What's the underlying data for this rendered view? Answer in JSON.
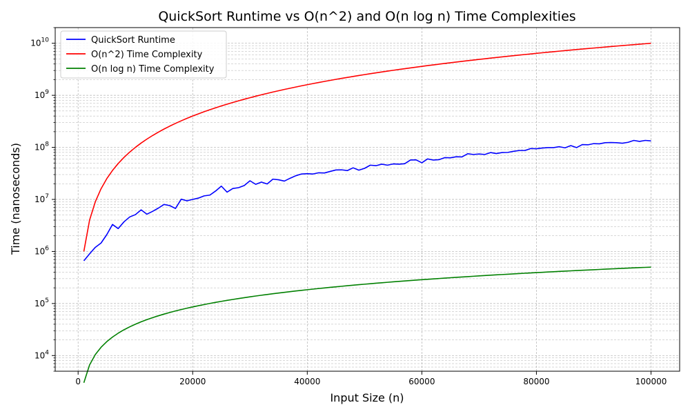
{
  "chart_data": {
    "type": "line",
    "title": "QuickSort Runtime vs O(n^2) and O(n log n) Time Complexities",
    "xlabel": "Input Size (n)",
    "ylabel": "Time (nanoseconds)",
    "xlim": [
      -4000,
      105000
    ],
    "ylim": [
      5000,
      20000000000
    ],
    "yscale": "log",
    "grid": true,
    "legend_position": "top-left",
    "x_ticks": [
      {
        "value": 0,
        "label": "0"
      },
      {
        "value": 20000,
        "label": "20000"
      },
      {
        "value": 40000,
        "label": "40000"
      },
      {
        "value": 60000,
        "label": "60000"
      },
      {
        "value": 80000,
        "label": "80000"
      },
      {
        "value": 100000,
        "label": "100000"
      }
    ],
    "y_ticks": [
      {
        "value": 10000,
        "base": "10",
        "exp": "4"
      },
      {
        "value": 100000,
        "base": "10",
        "exp": "5"
      },
      {
        "value": 1000000,
        "base": "10",
        "exp": "6"
      },
      {
        "value": 10000000,
        "base": "10",
        "exp": "7"
      },
      {
        "value": 100000000,
        "base": "10",
        "exp": "8"
      },
      {
        "value": 1000000000,
        "base": "10",
        "exp": "9"
      },
      {
        "value": 10000000000,
        "base": "10",
        "exp": "10"
      }
    ],
    "series": [
      {
        "name": "QuickSort Runtime",
        "color": "#0000ff",
        "points": [
          [
            1000,
            660000
          ],
          [
            2000,
            900000
          ],
          [
            3000,
            1200000
          ],
          [
            4000,
            1450000
          ],
          [
            5000,
            2100000
          ],
          [
            6000,
            3300000
          ],
          [
            7000,
            2750000
          ],
          [
            8000,
            3700000
          ],
          [
            9000,
            4600000
          ],
          [
            10000,
            5100000
          ],
          [
            11000,
            6300000
          ],
          [
            12000,
            5200000
          ],
          [
            13000,
            5900000
          ],
          [
            14000,
            6800000
          ],
          [
            15000,
            8000000
          ],
          [
            16000,
            7600000
          ],
          [
            17000,
            6700000
          ],
          [
            18000,
            10100000
          ],
          [
            19000,
            9400000
          ],
          [
            20000,
            10000000
          ],
          [
            21000,
            10600000
          ],
          [
            22000,
            11700000
          ],
          [
            23000,
            12100000
          ],
          [
            24000,
            14500000
          ],
          [
            25000,
            18000000
          ],
          [
            26000,
            13800000
          ],
          [
            27000,
            16200000
          ],
          [
            28000,
            16800000
          ],
          [
            29000,
            18500000
          ],
          [
            30000,
            22800000
          ],
          [
            31000,
            19500000
          ],
          [
            32000,
            21500000
          ],
          [
            33000,
            19800000
          ],
          [
            34000,
            24500000
          ],
          [
            35000,
            23800000
          ],
          [
            36000,
            22500000
          ],
          [
            37000,
            25500000
          ],
          [
            38000,
            28500000
          ],
          [
            39000,
            30800000
          ],
          [
            40000,
            31200000
          ],
          [
            41000,
            30800000
          ],
          [
            42000,
            32500000
          ],
          [
            43000,
            32200000
          ],
          [
            44000,
            34500000
          ],
          [
            45000,
            36800000
          ],
          [
            46000,
            37000000
          ],
          [
            47000,
            35800000
          ],
          [
            48000,
            40500000
          ],
          [
            49000,
            36500000
          ],
          [
            50000,
            39500000
          ],
          [
            51000,
            45500000
          ],
          [
            52000,
            44500000
          ],
          [
            53000,
            47500000
          ],
          [
            54000,
            45500000
          ],
          [
            55000,
            48000000
          ],
          [
            56000,
            47500000
          ],
          [
            57000,
            48500000
          ],
          [
            58000,
            57000000
          ],
          [
            59000,
            57500000
          ],
          [
            60000,
            50500000
          ],
          [
            61000,
            60000000
          ],
          [
            62000,
            57000000
          ],
          [
            63000,
            58000000
          ],
          [
            64000,
            63500000
          ],
          [
            65000,
            63000000
          ],
          [
            66000,
            66000000
          ],
          [
            67000,
            65500000
          ],
          [
            68000,
            75500000
          ],
          [
            69000,
            73000000
          ],
          [
            70000,
            74500000
          ],
          [
            71000,
            73000000
          ],
          [
            72000,
            79500000
          ],
          [
            73000,
            76000000
          ],
          [
            74000,
            79500000
          ],
          [
            75000,
            80000000
          ],
          [
            76000,
            84000000
          ],
          [
            77000,
            87000000
          ],
          [
            78000,
            87000000
          ],
          [
            79000,
            95000000
          ],
          [
            80000,
            94000000
          ],
          [
            81000,
            97000000
          ],
          [
            82000,
            99000000
          ],
          [
            83000,
            99000000
          ],
          [
            84000,
            103000000
          ],
          [
            85000,
            98000000
          ],
          [
            86000,
            108000000
          ],
          [
            87000,
            99000000
          ],
          [
            88000,
            113000000
          ],
          [
            89000,
            112000000
          ],
          [
            90000,
            118000000
          ],
          [
            91000,
            117000000
          ],
          [
            92000,
            123000000
          ],
          [
            93000,
            124000000
          ],
          [
            94000,
            123000000
          ],
          [
            95000,
            120000000
          ],
          [
            96000,
            125000000
          ],
          [
            97000,
            136000000
          ],
          [
            98000,
            130000000
          ],
          [
            99000,
            136000000
          ],
          [
            100000,
            133000000
          ]
        ]
      },
      {
        "name": "O(n^2) Time Complexity",
        "color": "#ff0000",
        "formula": "n^2",
        "x_start": 1000,
        "x_end": 100000,
        "x_step": 1000
      },
      {
        "name": "O(n log n) Time Complexity",
        "color": "#008000",
        "formula": "n*log10(n)",
        "x_start": 1000,
        "x_end": 100000,
        "x_step": 1000
      }
    ]
  }
}
